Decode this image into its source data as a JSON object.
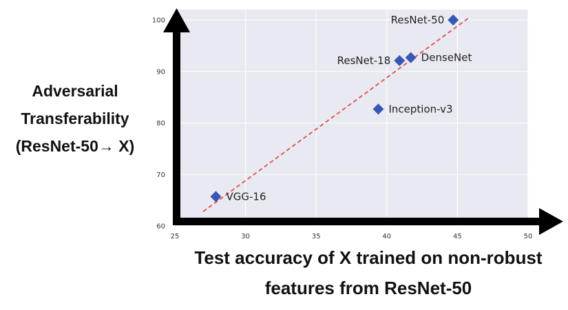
{
  "chart_data": {
    "type": "scatter",
    "title": "",
    "xlabel_lines": [
      "Test accuracy of X trained on non-robust",
      "features from ResNet-50"
    ],
    "ylabel_lines": [
      "Adversarial",
      "Transferability",
      "(ResNet-50→ X)"
    ],
    "xlim": [
      25,
      50
    ],
    "ylim": [
      60,
      102
    ],
    "xticks": [
      "25",
      "30",
      "35",
      "40",
      "45",
      "50"
    ],
    "yticks": [
      "60",
      "70",
      "80",
      "90",
      "100"
    ],
    "grid": true,
    "points": [
      {
        "label": "VGG-16",
        "x": 27.9,
        "y": 65.7,
        "label_side": "right"
      },
      {
        "label": "Inception-v3",
        "x": 39.4,
        "y": 82.7,
        "label_side": "right"
      },
      {
        "label": "ResNet-18",
        "x": 40.9,
        "y": 92.1,
        "label_side": "left"
      },
      {
        "label": "DenseNet",
        "x": 41.7,
        "y": 92.7,
        "label_side": "right"
      },
      {
        "label": "ResNet-50",
        "x": 44.7,
        "y": 100.0,
        "label_side": "left"
      }
    ],
    "trend_line": {
      "x": [
        27.0,
        45.8
      ],
      "y": [
        62.8,
        100.4
      ]
    },
    "colors": {
      "marker": "#3657b3",
      "trend": "#e05a5a",
      "plot_bg": "#e9e9f1",
      "axis_arrow": "#000000"
    }
  }
}
